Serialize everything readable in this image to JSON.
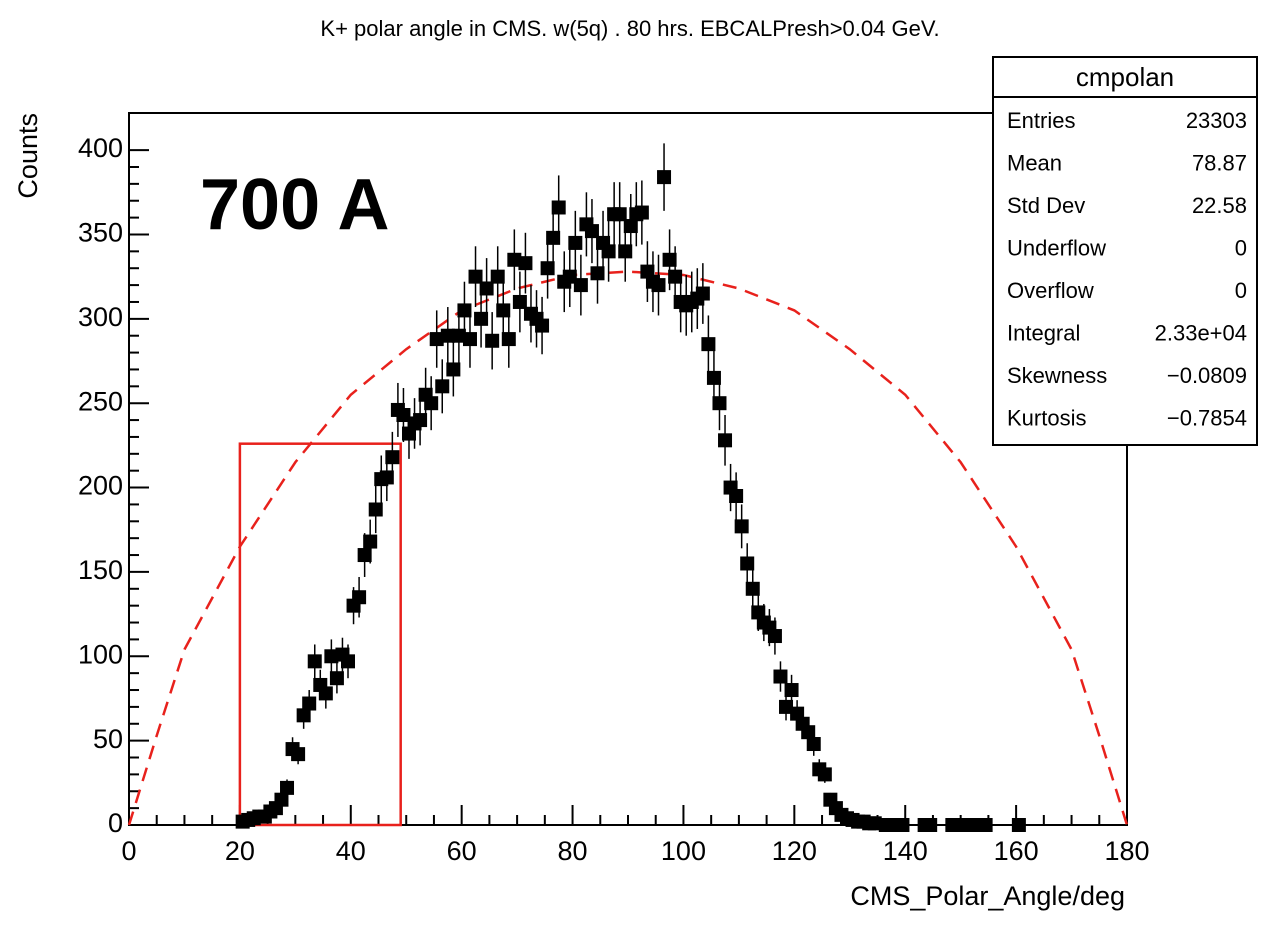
{
  "chart_data": {
    "type": "errorbar",
    "title": "K+ polar angle in CMS. w(5q) . 80 hrs. EBCALPresh>0.04 GeV.",
    "x_label": "CMS_Polar_Angle/deg",
    "y_label": "Counts",
    "annotation": "700 A",
    "annotation_color": "#1a6b1f",
    "xlim": [
      0,
      180
    ],
    "ylim": [
      0,
      422
    ],
    "xticks": [
      0,
      20,
      40,
      60,
      80,
      100,
      120,
      140,
      160,
      180
    ],
    "yticks": [
      0,
      50,
      100,
      150,
      200,
      250,
      300,
      350,
      400
    ],
    "series": [
      {
        "name": "cmpolan",
        "color": "#000000",
        "x": [
          20.5,
          21.5,
          22.5,
          23.5,
          24.5,
          25.5,
          26.5,
          27.5,
          28.5,
          29.5,
          30.5,
          31.5,
          32.5,
          33.5,
          34.5,
          35.5,
          36.5,
          37.5,
          38.5,
          39.5,
          40.5,
          41.5,
          42.5,
          43.5,
          44.5,
          45.5,
          46.5,
          47.5,
          48.5,
          49.5,
          50.5,
          51.5,
          52.5,
          53.5,
          54.5,
          55.5,
          56.5,
          57.5,
          58.5,
          59.5,
          60.5,
          61.5,
          62.5,
          63.5,
          64.5,
          65.5,
          66.5,
          67.5,
          68.5,
          69.5,
          70.5,
          71.5,
          72.5,
          73.5,
          74.5,
          75.5,
          76.5,
          77.5,
          78.5,
          79.5,
          80.5,
          81.5,
          82.5,
          83.5,
          84.5,
          85.5,
          86.5,
          87.5,
          88.5,
          89.5,
          90.5,
          91.5,
          92.5,
          93.5,
          94.5,
          95.5,
          96.5,
          97.5,
          98.5,
          99.5,
          100.5,
          101.5,
          102.5,
          103.5,
          104.5,
          105.5,
          106.5,
          107.5,
          108.5,
          109.5,
          110.5,
          111.5,
          112.5,
          113.5,
          114.5,
          115.5,
          116.5,
          117.5,
          118.5,
          119.5,
          120.5,
          121.5,
          122.5,
          123.5,
          124.5,
          125.5,
          126.5,
          127.5,
          128.5,
          129.5,
          130.5,
          131.5,
          132.5,
          133.5,
          134.5,
          136.5,
          137.5,
          139.5,
          143.5,
          144.5,
          148.5,
          149.5,
          150.5,
          152.5,
          153.5,
          154.5,
          160.5
        ],
        "values": [
          2,
          3,
          4,
          5,
          5,
          8,
          10,
          15,
          22,
          45,
          42,
          65,
          72,
          97,
          83,
          78,
          100,
          87,
          101,
          97,
          130,
          135,
          160,
          168,
          187,
          205,
          206,
          218,
          246,
          243,
          232,
          238,
          240,
          255,
          250,
          288,
          260,
          290,
          270,
          290,
          305,
          288,
          325,
          300,
          318,
          287,
          325,
          305,
          288,
          335,
          310,
          333,
          303,
          300,
          296,
          330,
          348,
          366,
          322,
          325,
          345,
          320,
          356,
          352,
          327,
          345,
          340,
          362,
          362,
          340,
          355,
          362,
          363,
          328,
          322,
          320,
          384,
          335,
          325,
          310,
          308,
          310,
          312,
          315,
          285,
          265,
          250,
          228,
          200,
          195,
          177,
          155,
          140,
          126,
          120,
          117,
          112,
          88,
          70,
          80,
          66,
          60,
          55,
          48,
          33,
          30,
          15,
          10,
          6,
          4,
          3,
          2,
          2,
          1,
          1,
          0,
          0,
          0,
          0,
          0,
          0,
          0,
          0,
          0,
          0,
          0,
          0
        ],
        "errors": [
          1,
          2,
          2,
          2,
          2,
          3,
          3,
          4,
          5,
          7,
          6,
          8,
          8,
          10,
          9,
          9,
          10,
          9,
          10,
          10,
          11,
          12,
          13,
          13,
          14,
          14,
          14,
          15,
          16,
          16,
          15,
          15,
          15,
          16,
          16,
          17,
          16,
          17,
          16,
          17,
          17,
          17,
          18,
          17,
          18,
          17,
          18,
          17,
          17,
          18,
          18,
          18,
          17,
          17,
          17,
          18,
          19,
          19,
          18,
          18,
          19,
          18,
          19,
          19,
          18,
          19,
          18,
          19,
          19,
          18,
          19,
          19,
          19,
          18,
          18,
          18,
          20,
          18,
          18,
          18,
          18,
          18,
          18,
          18,
          17,
          16,
          16,
          15,
          14,
          14,
          13,
          12,
          12,
          11,
          11,
          11,
          11,
          9,
          8,
          9,
          8,
          8,
          7,
          7,
          6,
          5,
          4,
          3,
          2,
          2,
          2,
          1,
          1,
          1,
          1,
          0,
          0,
          0,
          0,
          0,
          0,
          0,
          0,
          0,
          0,
          0,
          0
        ]
      }
    ],
    "curve": {
      "color": "#e8211c",
      "x": [
        0,
        5,
        10,
        20,
        30,
        40,
        50,
        60,
        70,
        80,
        90,
        100,
        110,
        120,
        130,
        140,
        150,
        160,
        170,
        175,
        180
      ],
      "values": [
        0,
        53,
        104,
        165,
        215,
        255,
        282,
        305,
        318,
        326,
        328,
        326,
        318,
        305,
        282,
        255,
        215,
        165,
        104,
        53,
        0
      ]
    },
    "highlight_box": {
      "color": "#e8211c",
      "x": [
        20,
        49
      ],
      "y": [
        0,
        226
      ]
    },
    "stats": {
      "title": "cmpolan",
      "rows": [
        {
          "label": "Entries",
          "value": "23303"
        },
        {
          "label": "Mean",
          "value": "78.87"
        },
        {
          "label": "Std Dev",
          "value": "22.58"
        },
        {
          "label": "Underflow",
          "value": "0"
        },
        {
          "label": "Overflow",
          "value": "0"
        },
        {
          "label": "Integral",
          "value": "2.33e+04"
        },
        {
          "label": "Skewness",
          "value": "−0.0809"
        },
        {
          "label": "Kurtosis",
          "value": "−0.7854"
        }
      ]
    }
  }
}
